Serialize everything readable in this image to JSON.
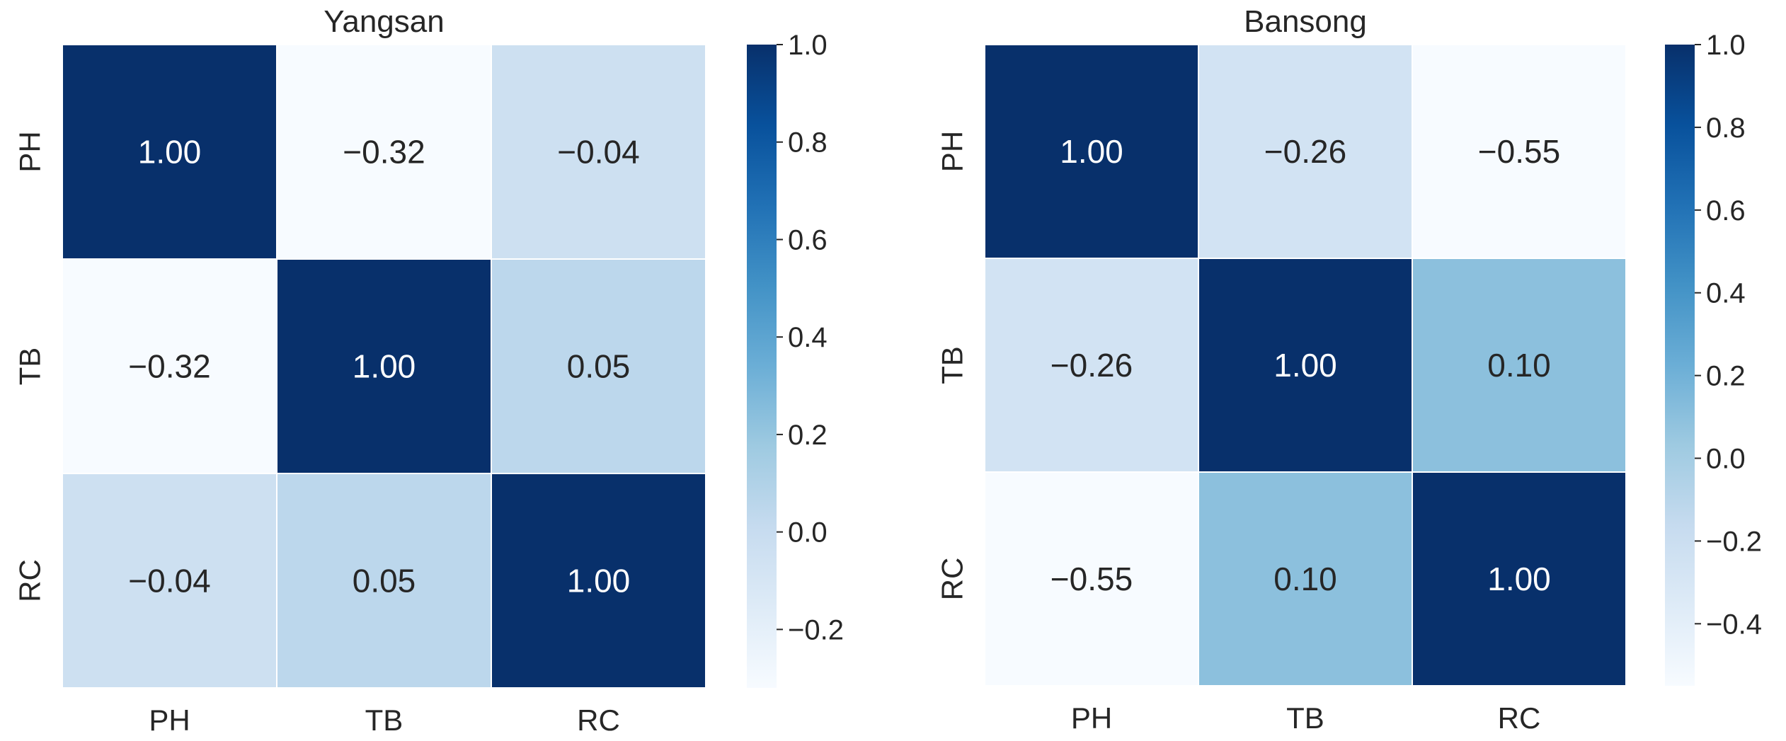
{
  "figure": {
    "colormap_name": "Blues",
    "colormap_stops": [
      "#f7fbff",
      "#deebf7",
      "#c6dbef",
      "#9ecae1",
      "#6baed6",
      "#4292c6",
      "#2171b5",
      "#08519c",
      "#08306b"
    ],
    "text_dark": "#262626",
    "text_light": "#ffffff",
    "cell_border": "#ffffff"
  },
  "chart_data": [
    {
      "type": "heatmap",
      "title": "Yangsan",
      "row_labels": [
        "PH",
        "TB",
        "RC"
      ],
      "col_labels": [
        "PH",
        "TB",
        "RC"
      ],
      "values": [
        [
          1.0,
          -0.32,
          -0.04
        ],
        [
          -0.32,
          1.0,
          0.05
        ],
        [
          -0.04,
          0.05,
          1.0
        ]
      ],
      "value_labels": [
        [
          "1.00",
          "−0.32",
          "−0.04"
        ],
        [
          "−0.32",
          "1.00",
          "0.05"
        ],
        [
          "−0.04",
          "0.05",
          "1.00"
        ]
      ],
      "vmin": -0.32,
      "vmax": 1.0,
      "colorbar_ticks": [
        1.0,
        0.8,
        0.6,
        0.4,
        0.2,
        0.0,
        -0.2
      ],
      "colorbar_tick_labels": [
        "1.0",
        "0.8",
        "0.6",
        "0.4",
        "0.2",
        "0.0",
        "−0.2"
      ]
    },
    {
      "type": "heatmap",
      "title": "Bansong",
      "row_labels": [
        "PH",
        "TB",
        "RC"
      ],
      "col_labels": [
        "PH",
        "TB",
        "RC"
      ],
      "values": [
        [
          1.0,
          -0.26,
          -0.55
        ],
        [
          -0.26,
          1.0,
          0.1
        ],
        [
          -0.55,
          0.1,
          1.0
        ]
      ],
      "value_labels": [
        [
          "1.00",
          "−0.26",
          "−0.55"
        ],
        [
          "−0.26",
          "1.00",
          "0.10"
        ],
        [
          "−0.55",
          "0.10",
          "1.00"
        ]
      ],
      "vmin": -0.55,
      "vmax": 1.0,
      "colorbar_ticks": [
        1.0,
        0.8,
        0.6,
        0.4,
        0.2,
        0.0,
        -0.2,
        -0.4
      ],
      "colorbar_tick_labels": [
        "1.0",
        "0.8",
        "0.6",
        "0.4",
        "0.2",
        "0.0",
        "−0.2",
        "−0.4"
      ]
    }
  ]
}
